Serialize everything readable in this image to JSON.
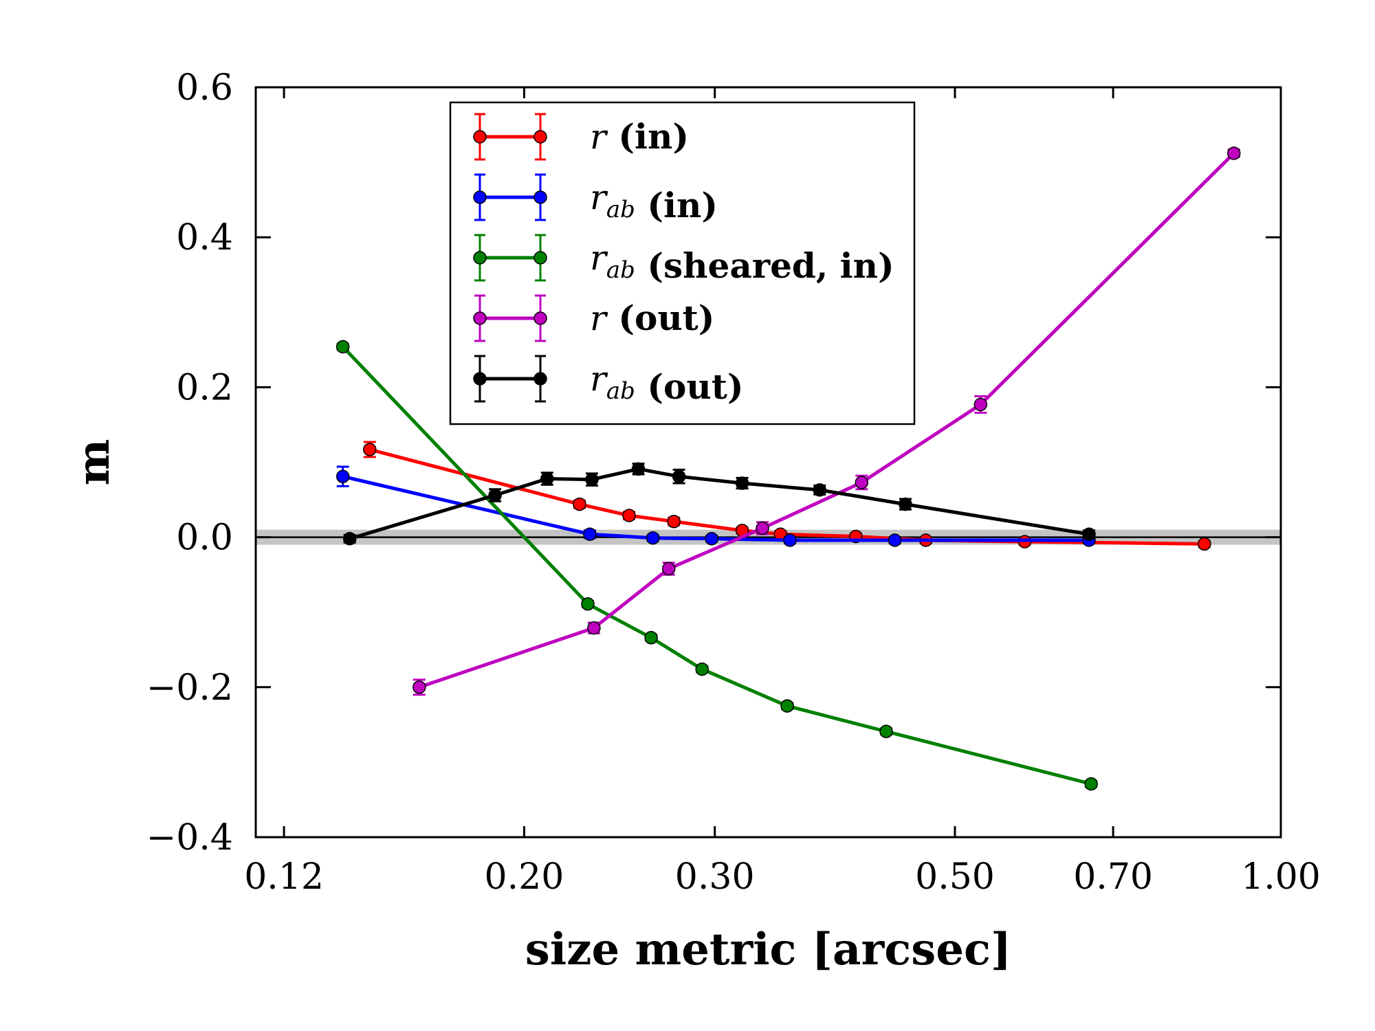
{
  "chart_data": {
    "type": "line",
    "xlabel": "size metric [arcsec]",
    "ylabel": "m",
    "xscale": "log",
    "xlim": [
      0.113,
      1.0
    ],
    "ylim": [
      -0.4,
      0.6
    ],
    "xticks": [
      0.12,
      0.2,
      0.3,
      0.5,
      0.7,
      1.0
    ],
    "xtick_labels": [
      "0.12",
      "0.20",
      "0.30",
      "0.50",
      "0.70",
      "1.00"
    ],
    "yticks": [
      -0.4,
      -0.2,
      0.0,
      0.2,
      0.4,
      0.6
    ],
    "ytick_labels": [
      "−0.4",
      "−0.2",
      "0.0",
      "0.2",
      "0.4",
      "0.6"
    ],
    "reference_line": 0.0,
    "reference_band": [
      -0.01,
      0.01
    ],
    "grid": false,
    "legend_position": "top-center",
    "series": [
      {
        "var": "r",
        "sub": "",
        "suffix": "(in)",
        "color": "#ff0000",
        "points": [
          [
            0.144,
            0.117,
            0.01
          ],
          [
            0.225,
            0.044,
            0.005
          ],
          [
            0.25,
            0.029,
            0.005
          ],
          [
            0.275,
            0.021,
            0.005
          ],
          [
            0.318,
            0.009,
            0.004
          ],
          [
            0.345,
            0.004,
            0.004
          ],
          [
            0.405,
            0.001,
            0.004
          ],
          [
            0.47,
            -0.004,
            0.004
          ],
          [
            0.58,
            -0.006,
            0.004
          ],
          [
            0.85,
            -0.009,
            0.004
          ]
        ]
      },
      {
        "var": "r",
        "sub": "ab",
        "suffix": "(in)",
        "color": "#0000ff",
        "points": [
          [
            0.136,
            0.081,
            0.013
          ],
          [
            0.23,
            0.004,
            0.005
          ],
          [
            0.263,
            -0.001,
            0.004
          ],
          [
            0.298,
            -0.002,
            0.004
          ],
          [
            0.352,
            -0.004,
            0.004
          ],
          [
            0.44,
            -0.004,
            0.004
          ],
          [
            0.665,
            -0.004,
            0.004
          ]
        ]
      },
      {
        "var": "r",
        "sub": "ab",
        "suffix": "(sheared, in)",
        "color": "#008000",
        "points": [
          [
            0.136,
            0.254,
            0.004
          ],
          [
            0.229,
            -0.089,
            0.004
          ],
          [
            0.262,
            -0.134,
            0.004
          ],
          [
            0.292,
            -0.176,
            0.004
          ],
          [
            0.35,
            -0.225,
            0.004
          ],
          [
            0.432,
            -0.259,
            0.004
          ],
          [
            0.668,
            -0.329,
            0.004
          ]
        ]
      },
      {
        "var": "r",
        "sub": "",
        "suffix": "(out)",
        "color": "#bf00bf",
        "points": [
          [
            0.16,
            -0.2,
            0.01
          ],
          [
            0.232,
            -0.121,
            0.007
          ],
          [
            0.272,
            -0.042,
            0.008
          ],
          [
            0.332,
            0.012,
            0.008
          ],
          [
            0.41,
            0.073,
            0.009
          ],
          [
            0.528,
            0.177,
            0.011
          ],
          [
            0.905,
            0.512,
            0.005
          ]
        ]
      },
      {
        "var": "r",
        "sub": "ab",
        "suffix": "(out)",
        "color": "#000000",
        "points": [
          [
            0.138,
            -0.002,
            0.005
          ],
          [
            0.188,
            0.056,
            0.008
          ],
          [
            0.21,
            0.078,
            0.008
          ],
          [
            0.231,
            0.077,
            0.008
          ],
          [
            0.255,
            0.091,
            0.007
          ],
          [
            0.278,
            0.081,
            0.009
          ],
          [
            0.318,
            0.072,
            0.007
          ],
          [
            0.375,
            0.063,
            0.006
          ],
          [
            0.45,
            0.044,
            0.007
          ],
          [
            0.665,
            0.004,
            0.005
          ]
        ]
      }
    ]
  }
}
